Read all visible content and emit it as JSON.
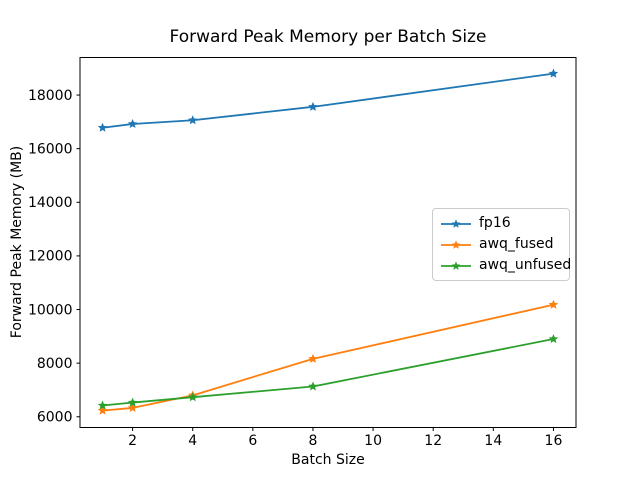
{
  "chart_data": {
    "type": "line",
    "title": "Forward Peak Memory per Batch Size",
    "xlabel": "Batch Size",
    "ylabel": "Forward Peak Memory (MB)",
    "x": [
      1,
      2,
      4,
      8,
      16
    ],
    "series": [
      {
        "name": "fp16",
        "color": "#1f77b4",
        "marker": "star",
        "values": [
          16780,
          16920,
          17060,
          17560,
          18800
        ]
      },
      {
        "name": "awq_fused",
        "color": "#ff7f0e",
        "marker": "star",
        "values": [
          6230,
          6330,
          6800,
          8160,
          10180
        ]
      },
      {
        "name": "awq_unfused",
        "color": "#2ca02c",
        "marker": "star",
        "values": [
          6420,
          6530,
          6730,
          7130,
          8900
        ]
      }
    ],
    "xlim": [
      0.25,
      16.75
    ],
    "ylim": [
      5600,
      19400
    ],
    "xticks": [
      2,
      4,
      6,
      8,
      10,
      12,
      14,
      16
    ],
    "yticks": [
      6000,
      8000,
      10000,
      12000,
      14000,
      16000,
      18000
    ],
    "grid": false,
    "legend_position": "center-right",
    "axis_color": "#000000",
    "background": "#ffffff"
  }
}
